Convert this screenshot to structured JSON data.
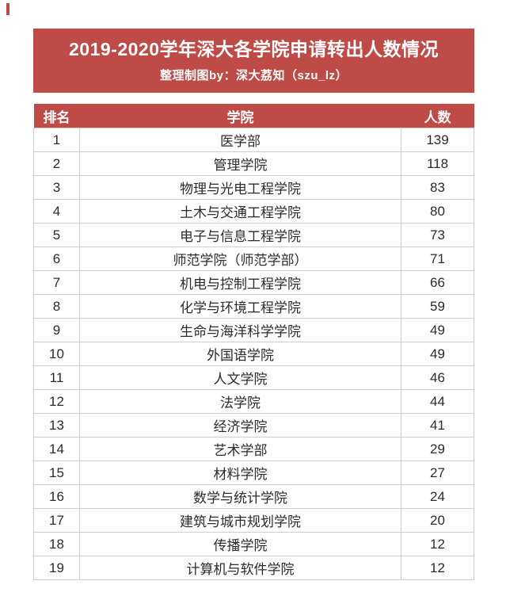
{
  "page": {
    "title": "2019-2020学年深大各学院申请转出人数情况",
    "subtitle": "整理制图by：深大荔知（szu_lz）"
  },
  "colors": {
    "accent": "#bf4b47",
    "grid": "#cfcfcf",
    "header_text": "#ffffff",
    "body_text": "#2b2b2b"
  },
  "chart_data": {
    "type": "table",
    "title": "2019-2020学年深大各学院申请转出人数情况",
    "subtitle": "整理制图by：深大荔知（szu_lz）",
    "columns": [
      "排名",
      "学院",
      "人数"
    ],
    "rows": [
      [
        "1",
        "医学部",
        "139"
      ],
      [
        "2",
        "管理学院",
        "118"
      ],
      [
        "3",
        "物理与光电工程学院",
        "83"
      ],
      [
        "4",
        "土木与交通工程学院",
        "80"
      ],
      [
        "5",
        "电子与信息工程学院",
        "73"
      ],
      [
        "6",
        "师范学院（师范学部）",
        "71"
      ],
      [
        "7",
        "机电与控制工程学院",
        "66"
      ],
      [
        "8",
        "化学与环境工程学院",
        "59"
      ],
      [
        "9",
        "生命与海洋科学学院",
        "49"
      ],
      [
        "10",
        "外国语学院",
        "49"
      ],
      [
        "11",
        "人文学院",
        "46"
      ],
      [
        "12",
        "法学院",
        "44"
      ],
      [
        "13",
        "经济学院",
        "41"
      ],
      [
        "14",
        "艺术学部",
        "29"
      ],
      [
        "15",
        "材料学院",
        "27"
      ],
      [
        "16",
        "数学与统计学院",
        "24"
      ],
      [
        "17",
        "建筑与城市规划学院",
        "20"
      ],
      [
        "18",
        "传播学院",
        "12"
      ],
      [
        "19",
        "计算机与软件学院",
        "12"
      ]
    ]
  }
}
